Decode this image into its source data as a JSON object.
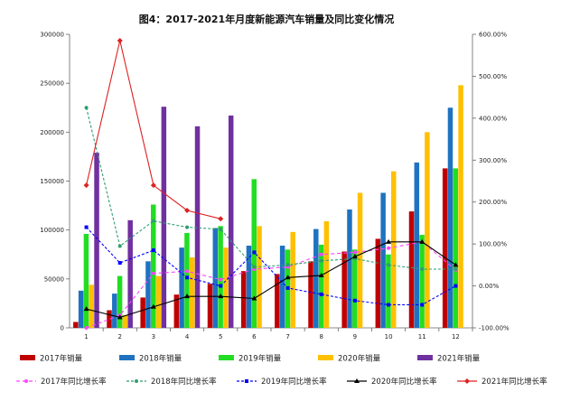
{
  "chart_data": {
    "type": "bar",
    "title": "图4：2017-2021年月度新能源汽车销量及同比变化情况",
    "categories": [
      "1",
      "2",
      "3",
      "4",
      "5",
      "6",
      "7",
      "8",
      "9",
      "10",
      "11",
      "12"
    ],
    "y_left": {
      "ticks": [
        "0",
        "50000",
        "100000",
        "150000",
        "200000",
        "250000",
        "300000"
      ],
      "ylim": [
        0,
        300000
      ]
    },
    "y_right": {
      "ticks": [
        "-100.00%",
        "0.00%",
        "100.00%",
        "200.00%",
        "300.00%",
        "400.00%",
        "500.00%",
        "600.00%"
      ],
      "ylim": [
        -100,
        600
      ]
    },
    "grid": false,
    "legend_position": "bottom",
    "bar_series": [
      {
        "name": "2017年销量",
        "color": "#c00000",
        "values": [
          6000,
          18000,
          31000,
          34000,
          45000,
          58000,
          55000,
          68000,
          78000,
          91000,
          119000,
          163000
        ]
      },
      {
        "name": "2018年销量",
        "color": "#1f72c1",
        "values": [
          38000,
          35000,
          68000,
          82000,
          102000,
          84000,
          84000,
          101000,
          121000,
          138000,
          169000,
          225000
        ]
      },
      {
        "name": "2019年销量",
        "color": "#22dd22",
        "values": [
          96000,
          53000,
          126000,
          97000,
          104000,
          152000,
          80000,
          85000,
          80000,
          75000,
          95000,
          163000
        ]
      },
      {
        "name": "2020年销量",
        "color": "#ffc000",
        "values": [
          44000,
          13000,
          53000,
          72000,
          82000,
          104000,
          98000,
          109000,
          138000,
          160000,
          200000,
          248000
        ]
      },
      {
        "name": "2021年销量",
        "color": "#7030a0",
        "values": [
          179000,
          110000,
          226000,
          206000,
          217000
        ]
      }
    ],
    "line_series": [
      {
        "name": "2017年同比增长率",
        "color": "#ff44ff",
        "marker": "dot",
        "dash": "4,3",
        "values": [
          -100,
          -70,
          30,
          35,
          15,
          40,
          45,
          75,
          80,
          90,
          105,
          38
        ]
      },
      {
        "name": "2018年同比增长率",
        "color": "#2e9e6e",
        "marker": "dot",
        "dash": "3,2",
        "values": [
          425,
          95,
          155,
          140,
          135,
          45,
          50,
          60,
          65,
          50,
          40,
          40
        ]
      },
      {
        "name": "2019年同比增长率",
        "color": "#0000ff",
        "marker": "square",
        "dash": "3,2",
        "values": [
          140,
          55,
          85,
          20,
          0,
          80,
          -5,
          -20,
          -35,
          -45,
          -45,
          0
        ]
      },
      {
        "name": "2020年同比增长率",
        "color": "#000000",
        "marker": "triangle",
        "dash": "",
        "values": [
          -55,
          -75,
          -50,
          -25,
          -25,
          -30,
          20,
          25,
          70,
          105,
          105,
          50
        ]
      },
      {
        "name": "2021年同比增长率",
        "color": "#dd2222",
        "marker": "diamond",
        "dash": "",
        "values": [
          240,
          585,
          240,
          180,
          160
        ]
      }
    ]
  }
}
